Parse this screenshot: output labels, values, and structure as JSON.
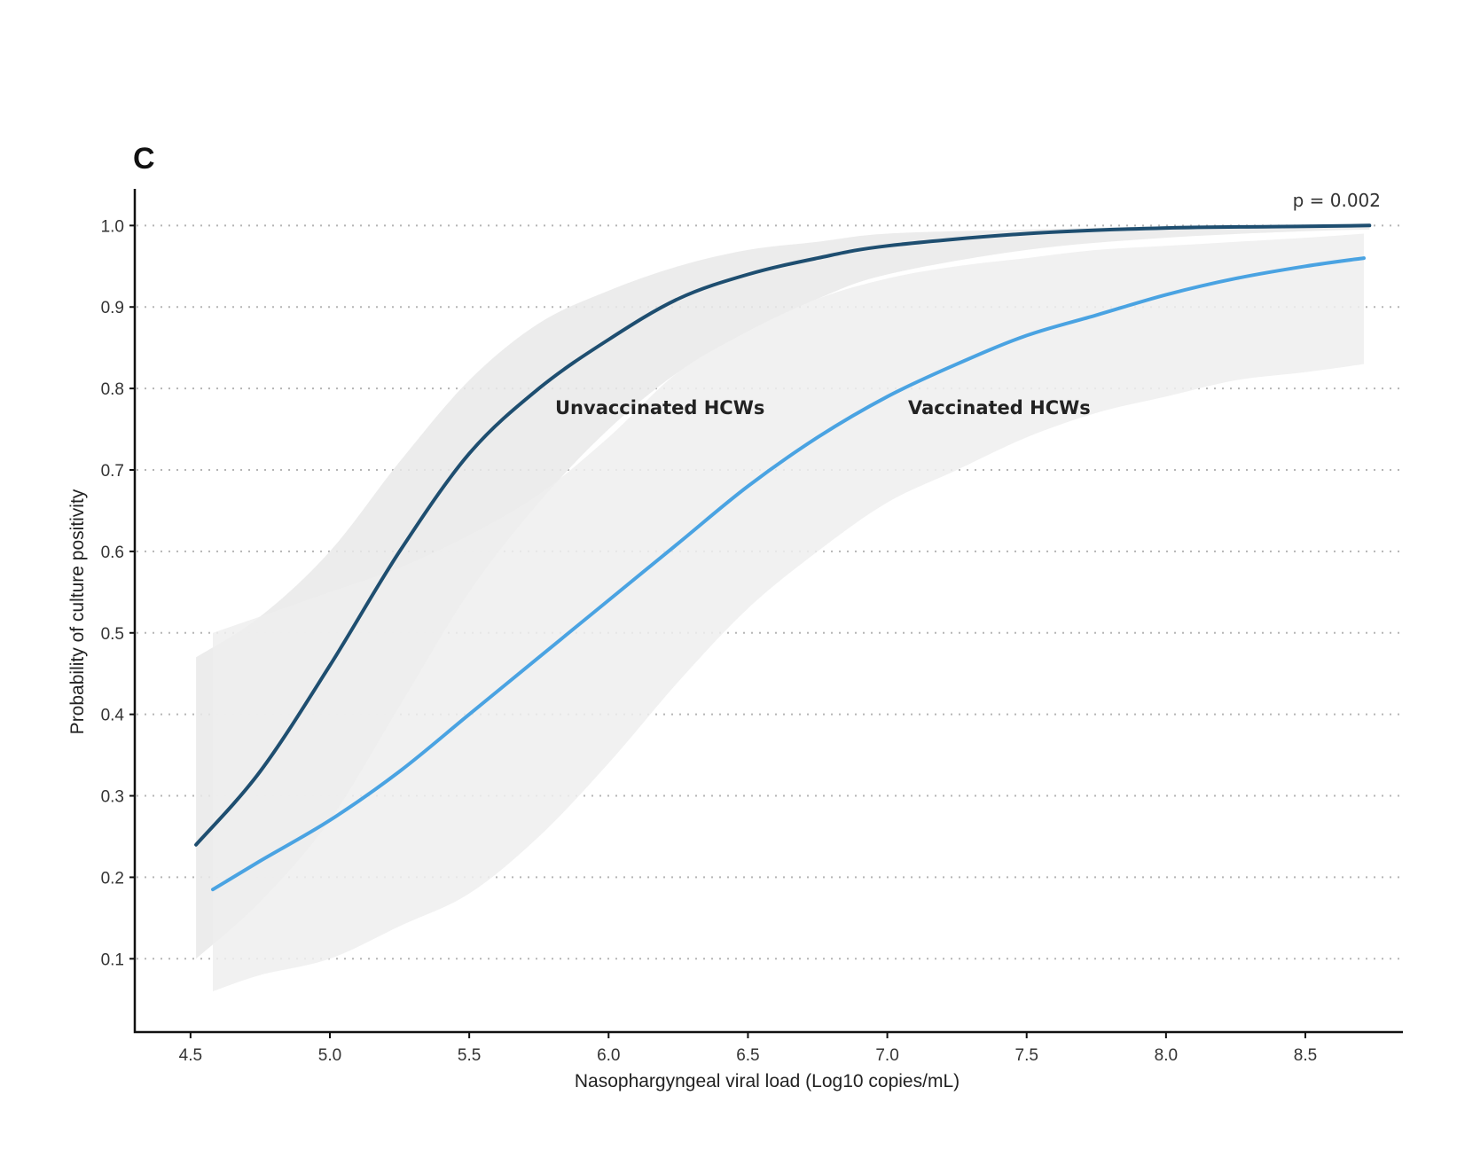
{
  "chart_data": {
    "type": "line",
    "panel_label": "C",
    "xlabel": "Nasophargyngeal viral load (Log10 copies/mL)",
    "ylabel": "Probability of culture positivity",
    "xlim": [
      4.3,
      8.85
    ],
    "ylim": [
      0.01,
      1.045
    ],
    "x_ticks": [
      4.5,
      5.0,
      5.5,
      6.0,
      6.5,
      7.0,
      7.5,
      8.0,
      8.5
    ],
    "x_tick_labels": [
      "4.5",
      "5.0",
      "5.5",
      "6.0",
      "6.5",
      "7.0",
      "7.5",
      "8.0",
      "8.5"
    ],
    "y_ticks": [
      0.1,
      0.2,
      0.3,
      0.4,
      0.5,
      0.6,
      0.7,
      0.8,
      0.9,
      1.0
    ],
    "y_tick_labels": [
      "0.1",
      "0.2",
      "0.3",
      "0.4",
      "0.5",
      "0.6",
      "0.7",
      "0.8",
      "0.9",
      "1.0"
    ],
    "grid": "horizontal dotted",
    "annotation": "p = 0.002",
    "series": [
      {
        "name": "Unvaccinated HCWs",
        "color": "#1e4e70",
        "band_color": "#e9e9e9",
        "x": [
          4.52,
          4.75,
          5.0,
          5.25,
          5.5,
          5.75,
          6.0,
          6.25,
          6.5,
          6.75,
          7.0,
          7.5,
          8.0,
          8.5,
          8.73
        ],
        "y": [
          0.24,
          0.33,
          0.46,
          0.6,
          0.72,
          0.8,
          0.86,
          0.91,
          0.94,
          0.96,
          0.975,
          0.99,
          0.997,
          0.999,
          1.0
        ],
        "lower": [
          0.1,
          0.17,
          0.27,
          0.41,
          0.55,
          0.66,
          0.75,
          0.82,
          0.87,
          0.91,
          0.94,
          0.97,
          0.985,
          0.993,
          0.995
        ],
        "upper": [
          0.47,
          0.52,
          0.6,
          0.71,
          0.81,
          0.88,
          0.92,
          0.95,
          0.97,
          0.98,
          0.99,
          0.995,
          0.999,
          1.0,
          1.0
        ]
      },
      {
        "name": "Vaccinated HCWs",
        "color": "#4aa3e2",
        "band_color": "#eeeeee",
        "x": [
          4.58,
          4.75,
          5.0,
          5.25,
          5.5,
          5.75,
          6.0,
          6.25,
          6.5,
          6.75,
          7.0,
          7.25,
          7.5,
          7.75,
          8.0,
          8.25,
          8.5,
          8.71
        ],
        "y": [
          0.185,
          0.22,
          0.27,
          0.33,
          0.4,
          0.47,
          0.54,
          0.61,
          0.68,
          0.74,
          0.79,
          0.83,
          0.865,
          0.89,
          0.915,
          0.935,
          0.95,
          0.96
        ],
        "lower": [
          0.06,
          0.08,
          0.1,
          0.14,
          0.18,
          0.25,
          0.34,
          0.44,
          0.53,
          0.6,
          0.66,
          0.7,
          0.74,
          0.77,
          0.79,
          0.81,
          0.82,
          0.83
        ],
        "upper": [
          0.5,
          0.52,
          0.55,
          0.58,
          0.62,
          0.67,
          0.74,
          0.82,
          0.87,
          0.91,
          0.935,
          0.95,
          0.96,
          0.97,
          0.975,
          0.98,
          0.985,
          0.99
        ]
      }
    ]
  }
}
